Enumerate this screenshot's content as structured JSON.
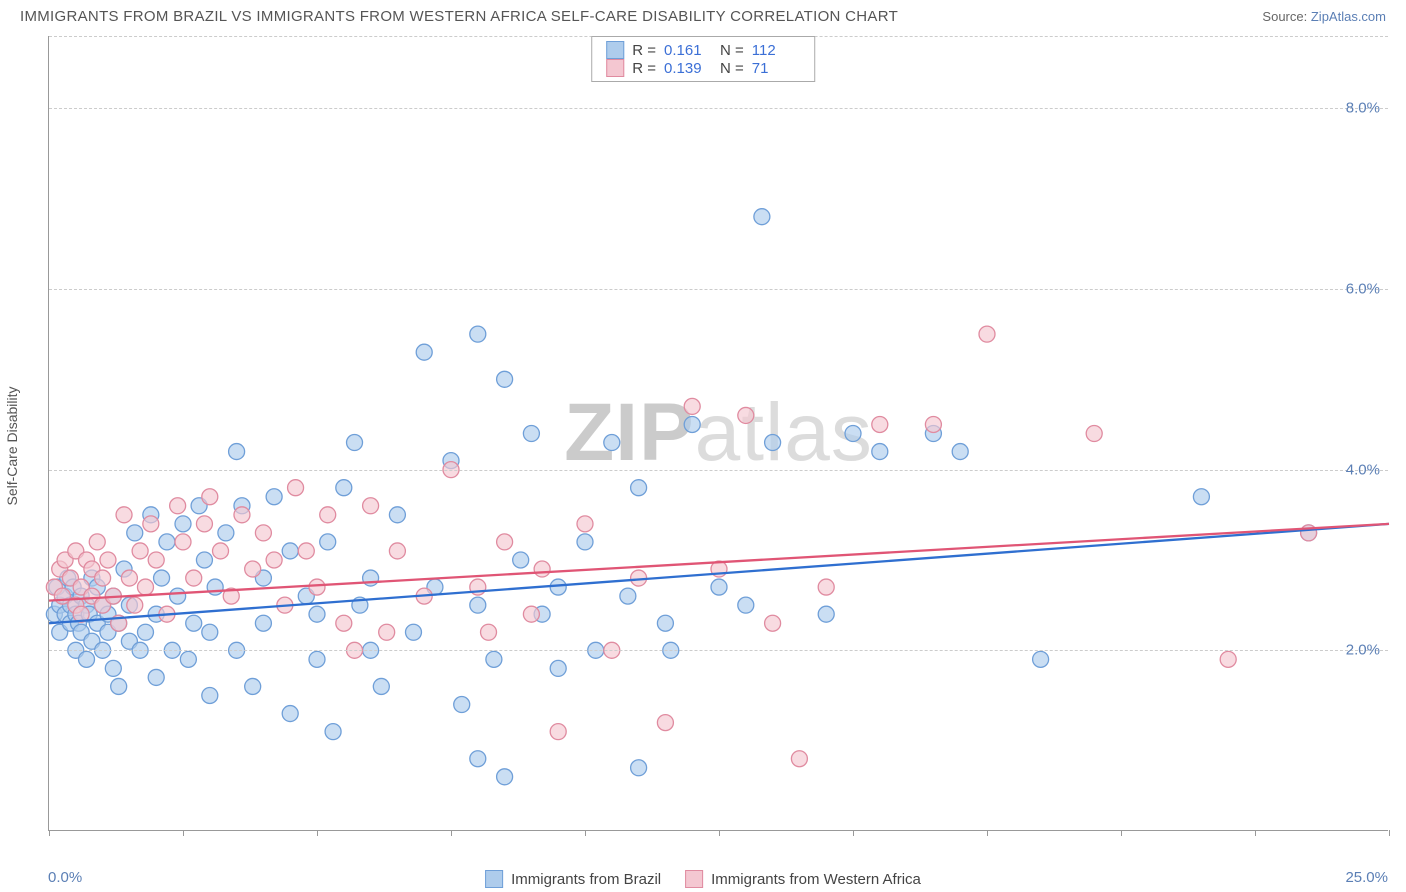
{
  "title": "IMMIGRANTS FROM BRAZIL VS IMMIGRANTS FROM WESTERN AFRICA SELF-CARE DISABILITY CORRELATION CHART",
  "source_label": "Source:",
  "source_name": "ZipAtlas.com",
  "y_axis_title": "Self-Care Disability",
  "watermark_pre": "ZIP",
  "watermark_post": "atlas",
  "chart": {
    "type": "scatter",
    "xlim": [
      0,
      25
    ],
    "ylim": [
      0,
      8.8
    ],
    "x_origin_label": "0.0%",
    "x_max_label": "25.0%",
    "y_ticks": [
      2.0,
      4.0,
      6.0,
      8.0
    ],
    "y_tick_labels": [
      "2.0%",
      "4.0%",
      "6.0%",
      "8.0%"
    ],
    "x_tick_positions": [
      0,
      2.5,
      5,
      7.5,
      10,
      12.5,
      15,
      17.5,
      20,
      22.5,
      25
    ],
    "grid_color": "#cccccc",
    "axis_color": "#999999",
    "background_color": "#ffffff",
    "point_radius": 8,
    "point_stroke_width": 1.3,
    "line_width": 2.3,
    "series": [
      {
        "name": "Immigrants from Brazil",
        "fill_color": "#aeccec",
        "stroke_color": "#6f9fd8",
        "line_color": "#2f6fd0",
        "R_label": "R =",
        "R": "0.161",
        "N_label": "N =",
        "N": "112",
        "trend": {
          "x1": 0,
          "y1": 2.3,
          "x2": 25,
          "y2": 3.4
        },
        "points": [
          [
            0.1,
            2.4
          ],
          [
            0.15,
            2.7
          ],
          [
            0.2,
            2.5
          ],
          [
            0.2,
            2.2
          ],
          [
            0.3,
            2.4
          ],
          [
            0.3,
            2.6
          ],
          [
            0.35,
            2.8
          ],
          [
            0.4,
            2.3
          ],
          [
            0.4,
            2.5
          ],
          [
            0.45,
            2.7
          ],
          [
            0.5,
            2.4
          ],
          [
            0.5,
            2.0
          ],
          [
            0.55,
            2.3
          ],
          [
            0.6,
            2.6
          ],
          [
            0.6,
            2.2
          ],
          [
            0.7,
            2.5
          ],
          [
            0.7,
            1.9
          ],
          [
            0.75,
            2.4
          ],
          [
            0.8,
            2.8
          ],
          [
            0.8,
            2.1
          ],
          [
            0.9,
            2.3
          ],
          [
            0.9,
            2.7
          ],
          [
            1.0,
            2.0
          ],
          [
            1.0,
            2.5
          ],
          [
            1.1,
            2.2
          ],
          [
            1.1,
            2.4
          ],
          [
            1.2,
            1.8
          ],
          [
            1.2,
            2.6
          ],
          [
            1.3,
            2.3
          ],
          [
            1.3,
            1.6
          ],
          [
            1.4,
            2.9
          ],
          [
            1.5,
            2.1
          ],
          [
            1.5,
            2.5
          ],
          [
            1.6,
            3.3
          ],
          [
            1.7,
            2.0
          ],
          [
            1.8,
            2.2
          ],
          [
            1.9,
            3.5
          ],
          [
            2.0,
            1.7
          ],
          [
            2.0,
            2.4
          ],
          [
            2.1,
            2.8
          ],
          [
            2.2,
            3.2
          ],
          [
            2.3,
            2.0
          ],
          [
            2.4,
            2.6
          ],
          [
            2.5,
            3.4
          ],
          [
            2.6,
            1.9
          ],
          [
            2.7,
            2.3
          ],
          [
            2.8,
            3.6
          ],
          [
            2.9,
            3.0
          ],
          [
            3.0,
            1.5
          ],
          [
            3.0,
            2.2
          ],
          [
            3.1,
            2.7
          ],
          [
            3.3,
            3.3
          ],
          [
            3.5,
            2.0
          ],
          [
            3.5,
            4.2
          ],
          [
            3.6,
            3.6
          ],
          [
            3.8,
            1.6
          ],
          [
            4.0,
            2.8
          ],
          [
            4.0,
            2.3
          ],
          [
            4.2,
            3.7
          ],
          [
            4.5,
            3.1
          ],
          [
            4.5,
            1.3
          ],
          [
            4.8,
            2.6
          ],
          [
            5.0,
            1.9
          ],
          [
            5.0,
            2.4
          ],
          [
            5.2,
            3.2
          ],
          [
            5.3,
            1.1
          ],
          [
            5.5,
            3.8
          ],
          [
            5.7,
            4.3
          ],
          [
            5.8,
            2.5
          ],
          [
            6.0,
            2.0
          ],
          [
            6.0,
            2.8
          ],
          [
            6.2,
            1.6
          ],
          [
            6.5,
            3.5
          ],
          [
            6.8,
            2.2
          ],
          [
            7.0,
            5.3
          ],
          [
            7.2,
            2.7
          ],
          [
            7.5,
            4.1
          ],
          [
            7.7,
            1.4
          ],
          [
            8.0,
            0.8
          ],
          [
            8.0,
            5.5
          ],
          [
            8.0,
            2.5
          ],
          [
            8.3,
            1.9
          ],
          [
            8.5,
            5.0
          ],
          [
            8.5,
            0.6
          ],
          [
            8.8,
            3.0
          ],
          [
            9.0,
            4.4
          ],
          [
            9.2,
            2.4
          ],
          [
            9.5,
            1.8
          ],
          [
            9.5,
            2.7
          ],
          [
            10.0,
            3.2
          ],
          [
            10.2,
            2.0
          ],
          [
            10.5,
            4.3
          ],
          [
            10.8,
            2.6
          ],
          [
            11.0,
            0.7
          ],
          [
            11.0,
            3.8
          ],
          [
            11.5,
            2.3
          ],
          [
            11.6,
            2.0
          ],
          [
            12.0,
            4.5
          ],
          [
            12.5,
            2.7
          ],
          [
            13.0,
            2.5
          ],
          [
            13.3,
            6.8
          ],
          [
            13.5,
            4.3
          ],
          [
            14.5,
            2.4
          ],
          [
            15.0,
            4.4
          ],
          [
            15.5,
            4.2
          ],
          [
            16.5,
            4.4
          ],
          [
            17.0,
            4.2
          ],
          [
            18.5,
            1.9
          ],
          [
            21.5,
            3.7
          ],
          [
            23.5,
            3.3
          ]
        ]
      },
      {
        "name": "Immigrants from Western Africa",
        "fill_color": "#f4c7d1",
        "stroke_color": "#e08ba0",
        "line_color": "#e05575",
        "R_label": "R =",
        "R": "0.139",
        "N_label": "N =",
        "N": "71",
        "trend": {
          "x1": 0,
          "y1": 2.55,
          "x2": 25,
          "y2": 3.4
        },
        "points": [
          [
            0.1,
            2.7
          ],
          [
            0.2,
            2.9
          ],
          [
            0.25,
            2.6
          ],
          [
            0.3,
            3.0
          ],
          [
            0.4,
            2.8
          ],
          [
            0.5,
            2.5
          ],
          [
            0.5,
            3.1
          ],
          [
            0.6,
            2.7
          ],
          [
            0.6,
            2.4
          ],
          [
            0.7,
            3.0
          ],
          [
            0.8,
            2.6
          ],
          [
            0.8,
            2.9
          ],
          [
            0.9,
            3.2
          ],
          [
            1.0,
            2.5
          ],
          [
            1.0,
            2.8
          ],
          [
            1.1,
            3.0
          ],
          [
            1.2,
            2.6
          ],
          [
            1.3,
            2.3
          ],
          [
            1.4,
            3.5
          ],
          [
            1.5,
            2.8
          ],
          [
            1.6,
            2.5
          ],
          [
            1.7,
            3.1
          ],
          [
            1.8,
            2.7
          ],
          [
            1.9,
            3.4
          ],
          [
            2.0,
            3.0
          ],
          [
            2.2,
            2.4
          ],
          [
            2.4,
            3.6
          ],
          [
            2.5,
            3.2
          ],
          [
            2.7,
            2.8
          ],
          [
            2.9,
            3.4
          ],
          [
            3.0,
            3.7
          ],
          [
            3.2,
            3.1
          ],
          [
            3.4,
            2.6
          ],
          [
            3.6,
            3.5
          ],
          [
            3.8,
            2.9
          ],
          [
            4.0,
            3.3
          ],
          [
            4.2,
            3.0
          ],
          [
            4.4,
            2.5
          ],
          [
            4.6,
            3.8
          ],
          [
            4.8,
            3.1
          ],
          [
            5.0,
            2.7
          ],
          [
            5.2,
            3.5
          ],
          [
            5.5,
            2.3
          ],
          [
            5.7,
            2.0
          ],
          [
            6.0,
            3.6
          ],
          [
            6.3,
            2.2
          ],
          [
            6.5,
            3.1
          ],
          [
            7.0,
            2.6
          ],
          [
            7.5,
            4.0
          ],
          [
            8.0,
            2.7
          ],
          [
            8.2,
            2.2
          ],
          [
            8.5,
            3.2
          ],
          [
            9.0,
            2.4
          ],
          [
            9.2,
            2.9
          ],
          [
            9.5,
            1.1
          ],
          [
            10.0,
            3.4
          ],
          [
            10.5,
            2.0
          ],
          [
            11.0,
            2.8
          ],
          [
            11.5,
            1.2
          ],
          [
            12.0,
            4.7
          ],
          [
            12.5,
            2.9
          ],
          [
            13.0,
            4.6
          ],
          [
            13.5,
            2.3
          ],
          [
            14.0,
            0.8
          ],
          [
            14.5,
            2.7
          ],
          [
            15.5,
            4.5
          ],
          [
            16.5,
            4.5
          ],
          [
            17.5,
            5.5
          ],
          [
            19.5,
            4.4
          ],
          [
            22.0,
            1.9
          ],
          [
            23.5,
            3.3
          ]
        ]
      }
    ]
  },
  "legend": {
    "series1_label": "Immigrants from Brazil",
    "series2_label": "Immigrants from Western Africa"
  }
}
